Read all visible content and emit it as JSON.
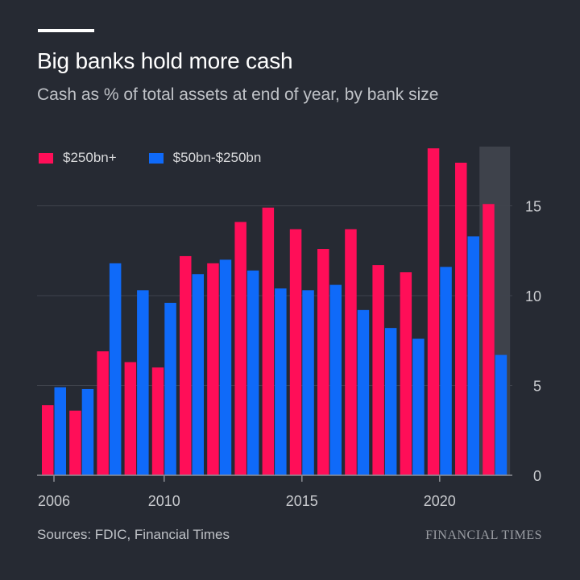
{
  "title": "Big banks hold more cash",
  "subtitle": "Cash as % of total assets at end of year, by bank size",
  "source": "Sources: FDIC, Financial Times",
  "brand": "FINANCIAL TIMES",
  "colors": {
    "background": "#262a33",
    "series_large": "#ff0e58",
    "series_mid": "#0f6af9",
    "highlight": "#3e424b",
    "grid": "#3f434c"
  },
  "chart_data": {
    "type": "bar",
    "title": "Big banks hold more cash",
    "subtitle": "Cash as % of total assets at end of year, by bank size",
    "x": [
      2006,
      2007,
      2008,
      2009,
      2010,
      2011,
      2012,
      2013,
      2014,
      2015,
      2016,
      2017,
      2018,
      2019,
      2020,
      2021,
      2022
    ],
    "series": [
      {
        "name": "$250bn+",
        "values": [
          3.9,
          3.6,
          6.9,
          6.3,
          6.0,
          12.2,
          11.8,
          14.1,
          14.9,
          13.7,
          12.6,
          13.7,
          11.7,
          11.3,
          18.2,
          17.4,
          15.1
        ]
      },
      {
        "name": "$50bn-$250bn",
        "values": [
          4.9,
          4.8,
          11.8,
          10.3,
          9.6,
          11.2,
          12.0,
          11.4,
          10.4,
          10.3,
          10.6,
          9.2,
          8.2,
          7.6,
          11.6,
          13.3,
          6.7
        ]
      }
    ],
    "xticks": [
      "2006",
      "2010",
      "2015",
      "2020"
    ],
    "yticks": [
      "0",
      "5",
      "10",
      "15"
    ],
    "ylim": [
      0,
      18.5
    ],
    "y_axis_side": "right",
    "highlighted_year": 2022,
    "grid": "horizontal",
    "legend": "top-left"
  }
}
